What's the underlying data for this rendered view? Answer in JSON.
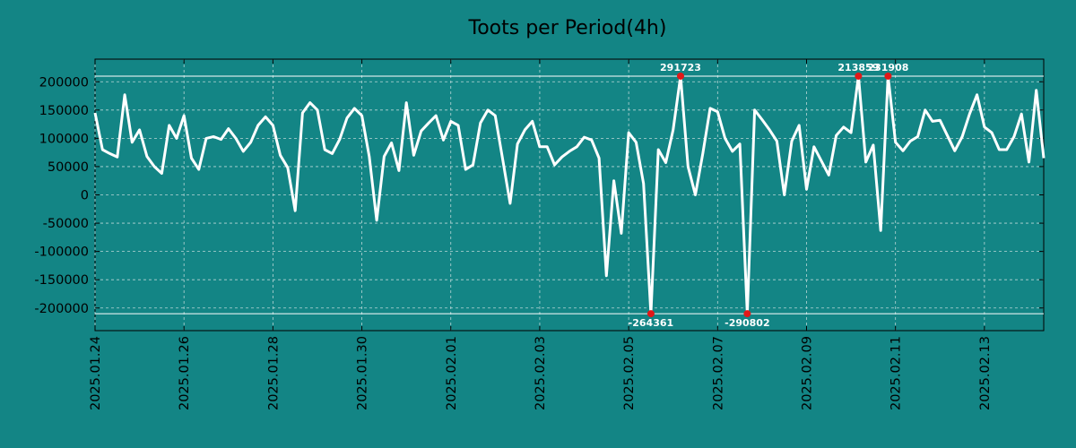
{
  "chart_data": {
    "type": "line",
    "title": "Toots per Period(4h)",
    "xlabel": "",
    "ylabel": "",
    "ylim": [
      -240000,
      240000
    ],
    "y_ticks": [
      200000,
      150000,
      100000,
      50000,
      0,
      -50000,
      -100000,
      -150000,
      -200000
    ],
    "y_tick_labels": [
      "200000",
      "150000",
      "100000",
      "50000",
      "0",
      "-50000",
      "-100000",
      "-150000",
      "-200000"
    ],
    "x_tick_labels": [
      "2025.01.24",
      "2025.01.26",
      "2025.01.28",
      "2025.01.30",
      "2025.02.01",
      "2025.02.03",
      "2025.02.05",
      "2025.02.07",
      "2025.02.09",
      "2025.02.11",
      "2025.02.13"
    ],
    "x_tick_index": [
      0,
      12,
      24,
      36,
      48,
      60,
      72,
      84,
      96,
      108,
      120
    ],
    "grid": true,
    "clip_upper": 210000,
    "clip_lower": -210000,
    "series": [
      {
        "name": "Toots",
        "color": "#ffffff",
        "values": [
          145000,
          80000,
          73000,
          67000,
          177000,
          93000,
          115000,
          68000,
          50000,
          38000,
          123000,
          100000,
          140000,
          65000,
          45000,
          100000,
          103000,
          98000,
          117000,
          100000,
          77000,
          93000,
          123000,
          138000,
          123000,
          70000,
          48000,
          -28000,
          145000,
          163000,
          150000,
          80000,
          73000,
          98000,
          136000,
          153000,
          140000,
          68000,
          -45000,
          68000,
          92000,
          43000,
          163000,
          70000,
          113000,
          127000,
          140000,
          97000,
          130000,
          123000,
          45000,
          53000,
          127000,
          150000,
          140000,
          63000,
          -15000,
          90000,
          115000,
          130000,
          85000,
          85000,
          53000,
          67000,
          77000,
          85000,
          102000,
          97000,
          65000,
          -143000,
          25000,
          -68000,
          110000,
          93000,
          20000,
          -264361,
          80000,
          57000,
          115000,
          291723,
          50000,
          0,
          73000,
          153000,
          147000,
          100000,
          77000,
          90000,
          -290802,
          150000,
          133000,
          115000,
          95000,
          0,
          95000,
          123000,
          10000,
          85000,
          60000,
          35000,
          105000,
          120000,
          110000,
          213859,
          58000,
          88000,
          -63000,
          231908,
          93000,
          78000,
          95000,
          103000,
          150000,
          130000,
          132000,
          105000,
          78000,
          103000,
          143000,
          177000,
          120000,
          110000,
          80000,
          80000,
          103000,
          143000,
          58000,
          185000,
          65000
        ]
      }
    ],
    "annotations": [
      {
        "index": 79,
        "label": "291723",
        "position": "top"
      },
      {
        "index": 103,
        "label": "213859",
        "position": "top"
      },
      {
        "index": 107,
        "label": "231908",
        "position": "top"
      },
      {
        "index": 75,
        "label": "-264361",
        "position": "bottom"
      },
      {
        "index": 88,
        "label": "-290802",
        "position": "bottom"
      }
    ]
  }
}
